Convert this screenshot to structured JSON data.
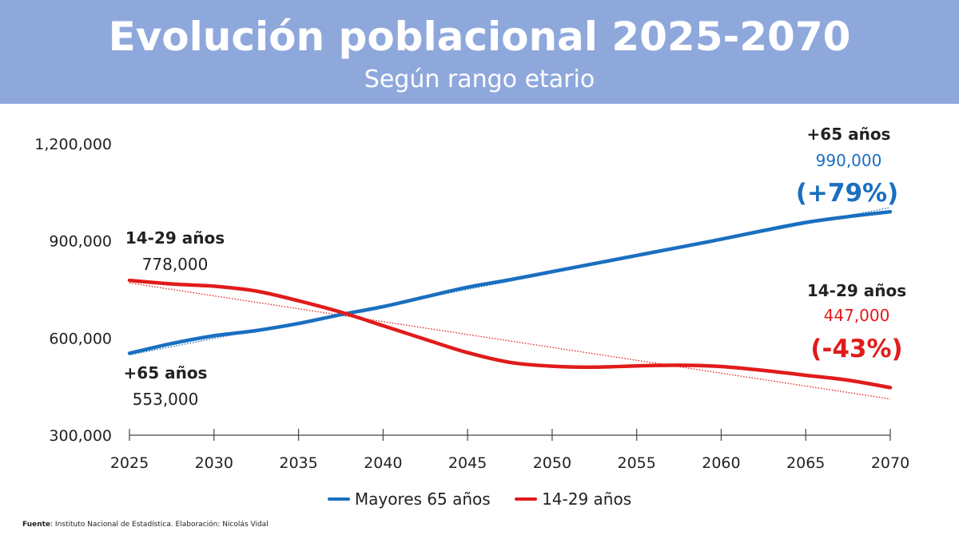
{
  "header": {
    "title": "Evolución poblacional 2025-2070",
    "subtitle": "Según rango etario"
  },
  "annotations": {
    "old_end_label": "+65 años",
    "old_end_value": "990,000",
    "old_end_pct": "(+79%)",
    "young_end_label": "14-29 años",
    "young_end_value": "447,000",
    "young_end_pct": "(-43%)",
    "young_start_label": "14-29 años",
    "young_start_value": "778,000",
    "old_start_label": "+65 años",
    "old_start_value": "553,000"
  },
  "footer": {
    "source_label": "Fuente",
    "source_text": ": Instituto Nacional de Estadística. Elaboración: Nicolás Vidal"
  },
  "colors": {
    "old": "#1a6fbf",
    "young": "#e11b1b",
    "header": "#8fa8dc"
  },
  "chart_data": {
    "type": "line",
    "title": "Evolución poblacional 2025-2070",
    "subtitle": "Según rango etario",
    "x": [
      2025,
      2027.5,
      2030,
      2032.5,
      2035,
      2037.5,
      2040,
      2042.5,
      2045,
      2047.5,
      2050,
      2052.5,
      2055,
      2057.5,
      2060,
      2062.5,
      2065,
      2067.5,
      2070
    ],
    "x_ticks": [
      "2025",
      "2030",
      "2035",
      "2040",
      "2045",
      "2050",
      "2055",
      "2060",
      "2065",
      "2070"
    ],
    "y_ticks": [
      "300,000",
      "600,000",
      "900,000",
      "1,200,000"
    ],
    "ylim": [
      300000,
      1200000
    ],
    "xlim": [
      2025,
      2070
    ],
    "grid": false,
    "legend_position": "bottom",
    "series": [
      {
        "name": "Mayores 65 años",
        "color": "#1a6fbf",
        "values": [
          553000,
          583000,
          607000,
          623000,
          645000,
          672000,
          697000,
          727000,
          757000,
          780000,
          805000,
          830000,
          855000,
          880000,
          905000,
          932000,
          957000,
          975000,
          990000
        ],
        "trend": [
          548000,
          1003000
        ]
      },
      {
        "name": "14-29 años",
        "color": "#e11b1b",
        "values": [
          778000,
          767000,
          760000,
          745000,
          715000,
          680000,
          638000,
          596000,
          555000,
          525000,
          513000,
          510000,
          514000,
          516000,
          512000,
          500000,
          485000,
          470000,
          447000
        ],
        "trend": [
          770000,
          412000
        ]
      }
    ]
  }
}
